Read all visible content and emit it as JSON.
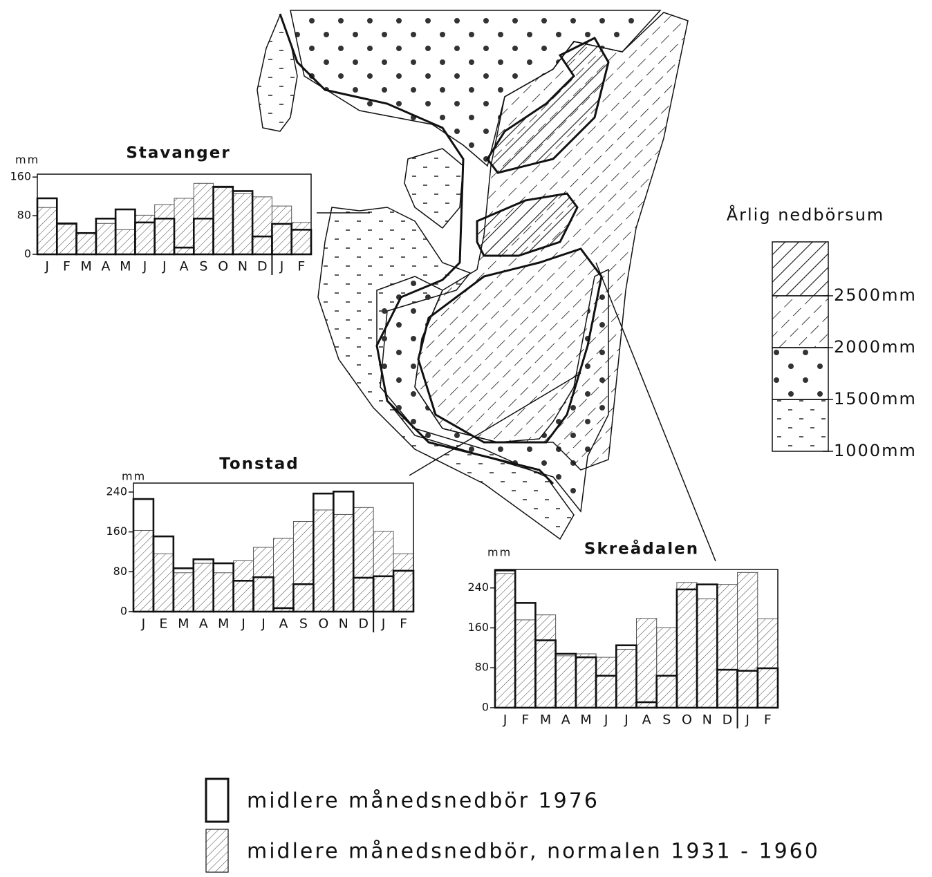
{
  "chart_data": [
    {
      "type": "bar",
      "title": "Stavanger",
      "y_label": "mm",
      "categories": [
        "J",
        "F",
        "M",
        "A",
        "M",
        "J",
        "J",
        "A",
        "S",
        "O",
        "N",
        "D",
        "J",
        "F"
      ],
      "series": [
        {
          "fill": "none",
          "color": "#111111",
          "values": [
            116,
            64,
            44,
            74,
            93,
            66,
            74,
            14,
            74,
            140,
            131,
            37,
            63,
            51
          ]
        },
        {
          "fill": "hatch",
          "color": "#555555",
          "values": [
            97,
            62,
            44,
            64,
            51,
            81,
            103,
            116,
            147,
            138,
            126,
            119,
            100,
            66
          ]
        }
      ],
      "ylim": [
        0,
        166
      ],
      "yticks": [
        0,
        80,
        160
      ]
    },
    {
      "type": "bar",
      "title": "Tonstad",
      "y_label": "mm",
      "categories": [
        "J",
        "E",
        "M",
        "A",
        "M",
        "J",
        "J",
        "A",
        "S",
        "O",
        "N",
        "D",
        "J",
        "F"
      ],
      "series": [
        {
          "fill": "none",
          "color": "#111111",
          "values": [
            226,
            151,
            87,
            105,
            97,
            62,
            69,
            7,
            55,
            237,
            241,
            68,
            71,
            82
          ]
        },
        {
          "fill": "hatch",
          "color": "#555555",
          "values": [
            163,
            116,
            78,
            97,
            78,
            102,
            129,
            147,
            181,
            204,
            195,
            209,
            161,
            116
          ]
        }
      ],
      "ylim": [
        0,
        258
      ],
      "yticks": [
        0,
        80,
        160,
        240
      ]
    },
    {
      "type": "bar",
      "title": "Skreådalen",
      "y_label": "mm",
      "categories": [
        "J",
        "F",
        "M",
        "A",
        "M",
        "J",
        "J",
        "A",
        "S",
        "O",
        "N",
        "D",
        "J",
        "F"
      ],
      "series": [
        {
          "fill": "none",
          "color": "#111111",
          "values": [
            275,
            210,
            135,
            108,
            101,
            64,
            125,
            11,
            64,
            237,
            247,
            76,
            74,
            79
          ]
        },
        {
          "fill": "hatch",
          "color": "#555555",
          "values": [
            269,
            176,
            186,
            104,
            108,
            101,
            117,
            179,
            160,
            251,
            218,
            247,
            271,
            178
          ]
        }
      ],
      "ylim": [
        0,
        277
      ],
      "yticks": [
        0,
        80,
        160,
        240
      ]
    }
  ],
  "legend": {
    "items": [
      {
        "fill": "none",
        "label": "midlere månedsnedbör 1976"
      },
      {
        "fill": "hatch",
        "label": "midlere månedsnedbör, normalen 1931 - 1960"
      }
    ]
  },
  "map_legend": {
    "title": "Årlig nedbörsum",
    "levels": [
      "2500mm",
      "2000mm",
      "1500mm",
      "1000mm"
    ]
  }
}
